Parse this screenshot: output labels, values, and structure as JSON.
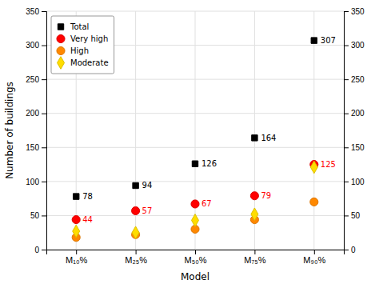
{
  "chart_data": {
    "type": "scatter",
    "categories": [
      "M₁₀%",
      "M₂₅%",
      "M₅₀%",
      "M₇₅%",
      "M₉₀%"
    ],
    "series": [
      {
        "name": "Total",
        "color": "#000000",
        "marker": "square",
        "data_labels": true,
        "values": [
          78,
          94,
          126,
          164,
          307
        ]
      },
      {
        "name": "Very high",
        "color": "#ff0000",
        "marker": "circle",
        "data_labels": true,
        "values": [
          44,
          57,
          67,
          79,
          125
        ]
      },
      {
        "name": "High",
        "color": "#ff8800",
        "marker": "circle",
        "values": [
          18,
          22,
          30,
          44,
          70
        ]
      },
      {
        "name": "Moderate",
        "color": "#ffdd00",
        "marker": "diamond",
        "values": [
          27,
          25,
          43,
          52,
          121
        ]
      }
    ],
    "xlabel": "Model",
    "ylabel": "Number of buildings",
    "ylim": [
      0,
      350
    ],
    "yticks": [
      0,
      50,
      100,
      150,
      200,
      250,
      300,
      350
    ],
    "y2lim": [
      0,
      350
    ],
    "y2ticks": [
      0,
      50,
      100,
      150,
      200,
      250,
      300,
      350
    ],
    "grid": true,
    "legend": "upper left"
  }
}
